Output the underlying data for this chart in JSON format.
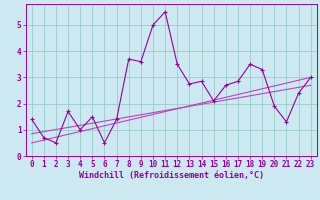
{
  "title": "",
  "xlabel": "Windchill (Refroidissement éolien,°C)",
  "ylabel": "",
  "bg_color": "#cce8f0",
  "line_color": "#990099",
  "line_color2": "#bb44bb",
  "grid_color": "#99cccc",
  "xlim": [
    -0.5,
    23.5
  ],
  "ylim": [
    0,
    5.8
  ],
  "xticks": [
    0,
    1,
    2,
    3,
    4,
    5,
    6,
    7,
    8,
    9,
    10,
    11,
    12,
    13,
    14,
    15,
    16,
    17,
    18,
    19,
    20,
    21,
    22,
    23
  ],
  "yticks": [
    0,
    1,
    2,
    3,
    4,
    5
  ],
  "data_x": [
    0,
    1,
    2,
    3,
    4,
    5,
    6,
    7,
    8,
    9,
    10,
    11,
    12,
    13,
    14,
    15,
    16,
    17,
    18,
    19,
    20,
    21,
    22,
    23
  ],
  "data_y": [
    1.4,
    0.7,
    0.5,
    1.7,
    1.0,
    1.5,
    0.5,
    1.4,
    3.7,
    3.6,
    5.0,
    5.5,
    3.5,
    2.75,
    2.85,
    2.1,
    2.7,
    2.85,
    3.5,
    3.3,
    1.9,
    1.3,
    2.4,
    3.0
  ],
  "trend1_x": [
    0,
    23
  ],
  "trend1_y": [
    0.85,
    2.7
  ],
  "trend2_x": [
    0,
    23
  ],
  "trend2_y": [
    0.5,
    3.0
  ],
  "xlabel_fontsize": 6,
  "tick_fontsize": 5.5,
  "marker_size": 3,
  "linewidth": 0.8
}
